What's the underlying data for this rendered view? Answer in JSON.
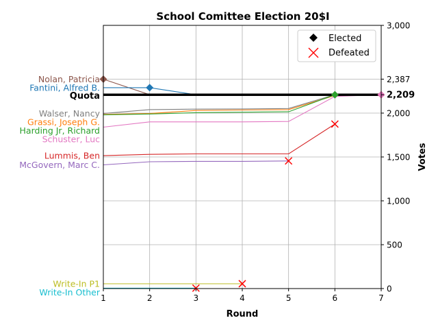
{
  "chart_data": {
    "type": "line",
    "title": "School Comittee Election 20$I",
    "xlabel": "Round",
    "ylabel": "Votes",
    "x": [
      1,
      2,
      3,
      4,
      5,
      6,
      7
    ],
    "xlim": [
      1,
      7
    ],
    "ylim": [
      0,
      3000
    ],
    "x_ticks": [
      "1",
      "2",
      "3",
      "4",
      "5",
      "6",
      "7"
    ],
    "y_ticks": [
      {
        "value": 0,
        "label": "0"
      },
      {
        "value": 500,
        "label": "500"
      },
      {
        "value": 1000,
        "label": "1,000"
      },
      {
        "value": 1500,
        "label": "1,500"
      },
      {
        "value": 2000,
        "label": "2,000"
      },
      {
        "value": 2209,
        "label": "2,209"
      },
      {
        "value": 2387,
        "label": "2,387"
      },
      {
        "value": 3000,
        "label": "3,000"
      }
    ],
    "y_axis_side": "right",
    "grid": true,
    "quota": {
      "label": "Quota",
      "value": 2209,
      "color": "#000000"
    },
    "legend": {
      "placement": "top-right",
      "entries": [
        {
          "label": "Elected",
          "marker": "diamond",
          "color": "#000000"
        },
        {
          "label": "Defeated",
          "marker": "x",
          "color": "#ff0000"
        }
      ]
    },
    "series": [
      {
        "name": "Nolan, Patricia",
        "color": "#8c564b",
        "values": [
          2387,
          2209,
          2209,
          2209,
          2209,
          2209,
          2209
        ],
        "elected_round": 1
      },
      {
        "name": "Fantini, Alfred B.",
        "color": "#1f77b4",
        "values": [
          2290,
          2290,
          2209,
          2209,
          2209,
          2209,
          2209
        ],
        "elected_round": 2
      },
      {
        "name": "Walser, Nancy",
        "color": "#7f7f7f",
        "values": [
          1995,
          2040,
          2045,
          2048,
          2052,
          2209,
          2209
        ],
        "elected_round": 6
      },
      {
        "name": "Grassi, Joseph G.",
        "color": "#ff7f0e",
        "values": [
          1985,
          1995,
          2030,
          2035,
          2040,
          2200,
          2209
        ],
        "elected_round": 7
      },
      {
        "name": "Harding Jr, Richard",
        "color": "#2ca02c",
        "values": [
          1980,
          1990,
          2005,
          2010,
          2015,
          2209,
          2209
        ],
        "elected_round": 6
      },
      {
        "name": "Schuster, Luc",
        "color": "#e377c2",
        "values": [
          1840,
          1900,
          1900,
          1900,
          1905,
          2190,
          2209
        ],
        "elected_round": 7
      },
      {
        "name": "Lummis, Ben",
        "color": "#d62728",
        "values": [
          1515,
          1530,
          1535,
          1535,
          1535,
          1875,
          null
        ],
        "defeated_round": 6
      },
      {
        "name": "McGovern, Marc C.",
        "color": "#9467bd",
        "values": [
          1410,
          1445,
          1450,
          1450,
          1455,
          null,
          null
        ],
        "defeated_round": 5
      },
      {
        "name": "Write-In P1",
        "color": "#bcbd22",
        "values": [
          55,
          55,
          55,
          55,
          null,
          null,
          null
        ],
        "defeated_round": 4
      },
      {
        "name": "Write-In Other",
        "color": "#17becf",
        "values": [
          5,
          5,
          5,
          null,
          null,
          null,
          null
        ],
        "defeated_round": 3
      }
    ]
  }
}
